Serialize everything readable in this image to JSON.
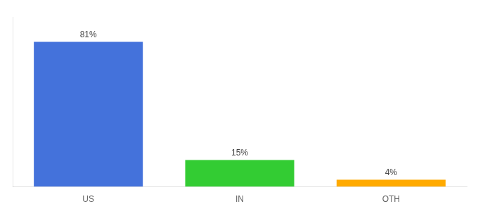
{
  "chart_data": {
    "type": "bar",
    "categories": [
      "US",
      "IN",
      "OTH"
    ],
    "values": [
      81,
      15,
      4
    ],
    "value_labels": [
      "81%",
      "15%",
      "4%"
    ],
    "colors": [
      "#4472db",
      "#33cc33",
      "#ffaa00"
    ],
    "data_labels": true,
    "ylim": [
      0,
      95
    ],
    "tick_labels": "x",
    "grid": false
  }
}
